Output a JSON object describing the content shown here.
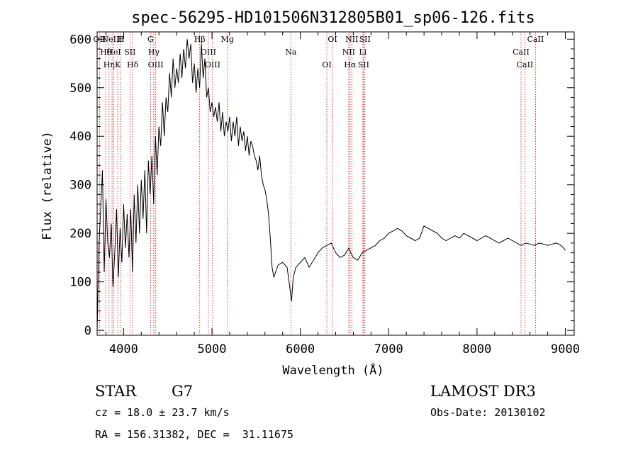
{
  "info": {
    "object_type": "STAR",
    "subclass": "G7",
    "survey": "LAMOST DR3",
    "redshift": "cz = 18.0 ± 23.7 km/s",
    "obs_date": "Obs-Date: 20130102",
    "coords": "RA = 156.31382, DEC =  31.11675"
  },
  "chart_data": {
    "type": "line",
    "title": "spec-56295-HD101506N312805B01_sp06-126.fits",
    "xlabel": "Wavelength (Å)",
    "ylabel": "Flux (relative)",
    "xlim": [
      3700,
      9100
    ],
    "ylim": [
      -10,
      615
    ],
    "xticks": [
      4000,
      5000,
      6000,
      7000,
      8000,
      9000
    ],
    "yticks": [
      0,
      100,
      200,
      300,
      400,
      500,
      600
    ],
    "grid": false,
    "line_color": "#000000",
    "marker_color": "#cc0000",
    "series": [
      {
        "x": [
          3700,
          3720,
          3740,
          3760,
          3780,
          3800,
          3820,
          3840,
          3860,
          3880,
          3900,
          3920,
          3940,
          3960,
          3980,
          4000,
          4020,
          4040,
          4060,
          4080,
          4100,
          4120,
          4140,
          4160,
          4180,
          4200,
          4220,
          4240,
          4260,
          4280,
          4300,
          4320,
          4340,
          4360,
          4380,
          4400,
          4420,
          4440,
          4460,
          4480,
          4500,
          4520,
          4540,
          4560,
          4580,
          4600,
          4620,
          4640,
          4660,
          4680,
          4700,
          4720,
          4740,
          4760,
          4780,
          4800,
          4820,
          4840,
          4860,
          4880,
          4900,
          4920,
          4940,
          4960,
          4980,
          5000,
          5020,
          5040,
          5060,
          5080,
          5100,
          5120,
          5140,
          5160,
          5180,
          5200,
          5220,
          5240,
          5260,
          5280,
          5300,
          5320,
          5340,
          5360,
          5380,
          5400,
          5420,
          5440,
          5460,
          5480,
          5500,
          5520,
          5540,
          5560,
          5580,
          5600,
          5620,
          5640,
          5660,
          5680,
          5700,
          5750,
          5800,
          5850,
          5880,
          5900,
          5920,
          5950,
          6000,
          6050,
          6100,
          6150,
          6200,
          6250,
          6300,
          6350,
          6400,
          6450,
          6500,
          6550,
          6570,
          6600,
          6650,
          6700,
          6750,
          6800,
          6850,
          6900,
          6950,
          7000,
          7050,
          7100,
          7150,
          7200,
          7250,
          7300,
          7350,
          7400,
          7450,
          7500,
          7550,
          7600,
          7650,
          7700,
          7750,
          7800,
          7850,
          7900,
          7950,
          8000,
          8050,
          8100,
          8150,
          8200,
          8250,
          8300,
          8350,
          8400,
          8450,
          8500,
          8550,
          8600,
          8650,
          8700,
          8750,
          8800,
          8850,
          8900,
          8950,
          8980,
          9000
        ],
        "y": [
          0,
          170,
          250,
          330,
          120,
          270,
          180,
          150,
          220,
          90,
          160,
          250,
          110,
          210,
          140,
          260,
          170,
          240,
          150,
          250,
          120,
          280,
          180,
          300,
          200,
          310,
          230,
          330,
          200,
          350,
          280,
          360,
          260,
          400,
          320,
          420,
          380,
          470,
          400,
          480,
          450,
          530,
          480,
          560,
          500,
          540,
          510,
          570,
          520,
          580,
          540,
          600,
          560,
          590,
          510,
          550,
          490,
          540,
          500,
          590,
          520,
          560,
          480,
          500,
          450,
          470,
          440,
          460,
          430,
          470,
          410,
          450,
          400,
          430,
          410,
          440,
          390,
          430,
          400,
          440,
          380,
          420,
          390,
          410,
          370,
          400,
          360,
          390,
          380,
          360,
          350,
          330,
          360,
          320,
          300,
          290,
          270,
          240,
          190,
          130,
          110,
          135,
          140,
          130,
          90,
          60,
          110,
          130,
          140,
          150,
          130,
          145,
          160,
          170,
          175,
          180,
          160,
          150,
          155,
          170,
          160,
          150,
          145,
          160,
          165,
          170,
          175,
          185,
          190,
          200,
          205,
          210,
          205,
          195,
          190,
          185,
          190,
          215,
          210,
          205,
          200,
          190,
          185,
          190,
          195,
          190,
          200,
          195,
          190,
          185,
          190,
          195,
          190,
          185,
          180,
          185,
          190,
          185,
          180,
          175,
          180,
          178,
          175,
          180,
          178,
          175,
          178,
          180,
          175,
          170,
          165
        ]
      }
    ],
    "lines": [
      {
        "wave": 3727,
        "label": "OII"
      },
      {
        "wave": 3798,
        "label": "Hθ"
      },
      {
        "wave": 3835,
        "label": "Hη"
      },
      {
        "wave": 3869,
        "label": "NeIII"
      },
      {
        "wave": 3889,
        "label": "HeI"
      },
      {
        "wave": 3934,
        "label": "K"
      },
      {
        "wave": 3969,
        "label": "H"
      },
      {
        "wave": 4072,
        "label": "SII"
      },
      {
        "wave": 4102,
        "label": "Hδ"
      },
      {
        "wave": 4305,
        "label": "G"
      },
      {
        "wave": 4341,
        "label": "Hγ"
      },
      {
        "wave": 4363,
        "label": "OIII"
      },
      {
        "wave": 4861,
        "label": "Hβ"
      },
      {
        "wave": 4959,
        "label": "OIII"
      },
      {
        "wave": 5007,
        "label": "OIII"
      },
      {
        "wave": 5175,
        "label": "Mg"
      },
      {
        "wave": 5893,
        "label": "Na"
      },
      {
        "wave": 6300,
        "label": "OI"
      },
      {
        "wave": 6364,
        "label": "OI"
      },
      {
        "wave": 6548,
        "label": "NII"
      },
      {
        "wave": 6563,
        "label": "Hα"
      },
      {
        "wave": 6583,
        "label": "NII"
      },
      {
        "wave": 6708,
        "label": "Li"
      },
      {
        "wave": 6716,
        "label": "SII"
      },
      {
        "wave": 6731,
        "label": "SII"
      },
      {
        "wave": 8498,
        "label": "CaII"
      },
      {
        "wave": 8542,
        "label": "CaII"
      },
      {
        "wave": 8662,
        "label": "CaII"
      }
    ]
  }
}
